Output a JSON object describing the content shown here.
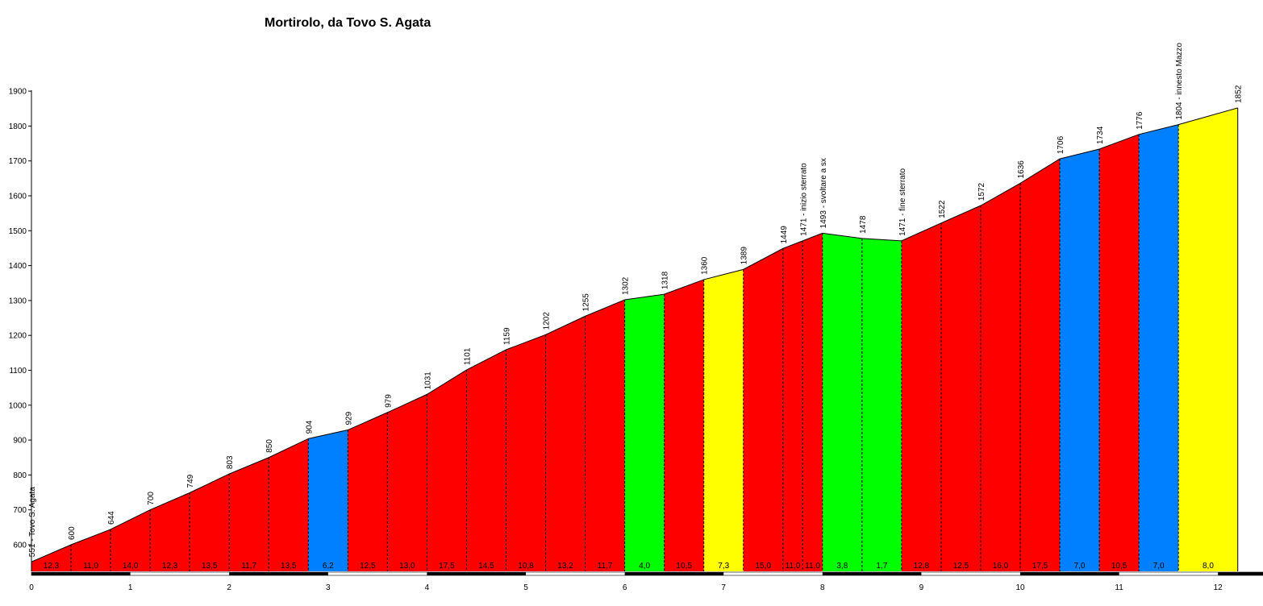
{
  "chart_data": {
    "type": "area",
    "title": "Mortirolo, da Tovo S. Agata",
    "xlabel": "",
    "ylabel": "",
    "xlim": [
      0,
      12.4
    ],
    "ylim": [
      520,
      1900
    ],
    "x_ticks": [
      0,
      1,
      2,
      3,
      4,
      5,
      6,
      7,
      8,
      9,
      10,
      11,
      12
    ],
    "y_ticks": [
      600,
      700,
      800,
      900,
      1000,
      1100,
      1200,
      1300,
      1400,
      1500,
      1600,
      1700,
      1800,
      1900
    ],
    "points": [
      {
        "x": 0.0,
        "y": 551,
        "label": "551 - Tovo S. Agata"
      },
      {
        "x": 0.4,
        "y": 600,
        "label": "600"
      },
      {
        "x": 0.8,
        "y": 644,
        "label": "644"
      },
      {
        "x": 1.2,
        "y": 700,
        "label": "700"
      },
      {
        "x": 1.6,
        "y": 749,
        "label": "749"
      },
      {
        "x": 2.0,
        "y": 803,
        "label": "803"
      },
      {
        "x": 2.4,
        "y": 850,
        "label": "850"
      },
      {
        "x": 2.8,
        "y": 904,
        "label": "904"
      },
      {
        "x": 3.2,
        "y": 929,
        "label": "929"
      },
      {
        "x": 3.6,
        "y": 979,
        "label": "979"
      },
      {
        "x": 4.0,
        "y": 1031,
        "label": "1031"
      },
      {
        "x": 4.4,
        "y": 1101,
        "label": "1101"
      },
      {
        "x": 4.8,
        "y": 1159,
        "label": "1159"
      },
      {
        "x": 5.2,
        "y": 1202,
        "label": "1202"
      },
      {
        "x": 5.6,
        "y": 1255,
        "label": "1255"
      },
      {
        "x": 6.0,
        "y": 1302,
        "label": "1302"
      },
      {
        "x": 6.4,
        "y": 1318,
        "label": "1318"
      },
      {
        "x": 6.8,
        "y": 1360,
        "label": "1360"
      },
      {
        "x": 7.2,
        "y": 1389,
        "label": "1389"
      },
      {
        "x": 7.6,
        "y": 1449,
        "label": "1449"
      },
      {
        "x": 7.8,
        "y": 1471,
        "label": "1471 - inizio sterrato"
      },
      {
        "x": 8.0,
        "y": 1493,
        "label": "1493 - svoltare a sx"
      },
      {
        "x": 8.4,
        "y": 1478,
        "label": "1478"
      },
      {
        "x": 8.8,
        "y": 1471,
        "label": "1471 - fine sterrato"
      },
      {
        "x": 9.2,
        "y": 1522,
        "label": "1522"
      },
      {
        "x": 9.6,
        "y": 1572,
        "label": "1572"
      },
      {
        "x": 10.0,
        "y": 1636,
        "label": "1636"
      },
      {
        "x": 10.4,
        "y": 1706,
        "label": "1706"
      },
      {
        "x": 10.8,
        "y": 1734,
        "label": "1734"
      },
      {
        "x": 11.2,
        "y": 1776,
        "label": "1776"
      },
      {
        "x": 11.6,
        "y": 1804,
        "label": "1804 - innesto Mazzo"
      },
      {
        "x": 12.2,
        "y": 1852,
        "label": "1852"
      }
    ],
    "segments": [
      {
        "grade": "12,3",
        "color": "#ff0000"
      },
      {
        "grade": "11,0",
        "color": "#ff0000"
      },
      {
        "grade": "14,0",
        "color": "#ff0000"
      },
      {
        "grade": "12,3",
        "color": "#ff0000"
      },
      {
        "grade": "13,5",
        "color": "#ff0000"
      },
      {
        "grade": "11,7",
        "color": "#ff0000"
      },
      {
        "grade": "13,5",
        "color": "#ff0000"
      },
      {
        "grade": "6,2",
        "color": "#0080ff"
      },
      {
        "grade": "12,5",
        "color": "#ff0000"
      },
      {
        "grade": "13,0",
        "color": "#ff0000"
      },
      {
        "grade": "17,5",
        "color": "#ff0000"
      },
      {
        "grade": "14,5",
        "color": "#ff0000"
      },
      {
        "grade": "10,8",
        "color": "#ff0000"
      },
      {
        "grade": "13,2",
        "color": "#ff0000"
      },
      {
        "grade": "11,7",
        "color": "#ff0000"
      },
      {
        "grade": "4,0",
        "color": "#00ff00"
      },
      {
        "grade": "10,5",
        "color": "#ff0000"
      },
      {
        "grade": "7,3",
        "color": "#ffff00"
      },
      {
        "grade": "15,0",
        "color": "#ff0000"
      },
      {
        "grade": "11,0",
        "color": "#ff0000"
      },
      {
        "grade": "11,0",
        "color": "#ff0000"
      },
      {
        "grade": "3,8",
        "color": "#00ff00"
      },
      {
        "grade": "1,7",
        "color": "#00ff00"
      },
      {
        "grade": "12,8",
        "color": "#ff0000"
      },
      {
        "grade": "12,5",
        "color": "#ff0000"
      },
      {
        "grade": "16,0",
        "color": "#ff0000"
      },
      {
        "grade": "17,5",
        "color": "#ff0000"
      },
      {
        "grade": "7,0",
        "color": "#0080ff"
      },
      {
        "grade": "10,5",
        "color": "#ff0000"
      },
      {
        "grade": "7,0",
        "color": "#0080ff"
      },
      {
        "grade": "8,0",
        "color": "#ffff00"
      }
    ]
  }
}
